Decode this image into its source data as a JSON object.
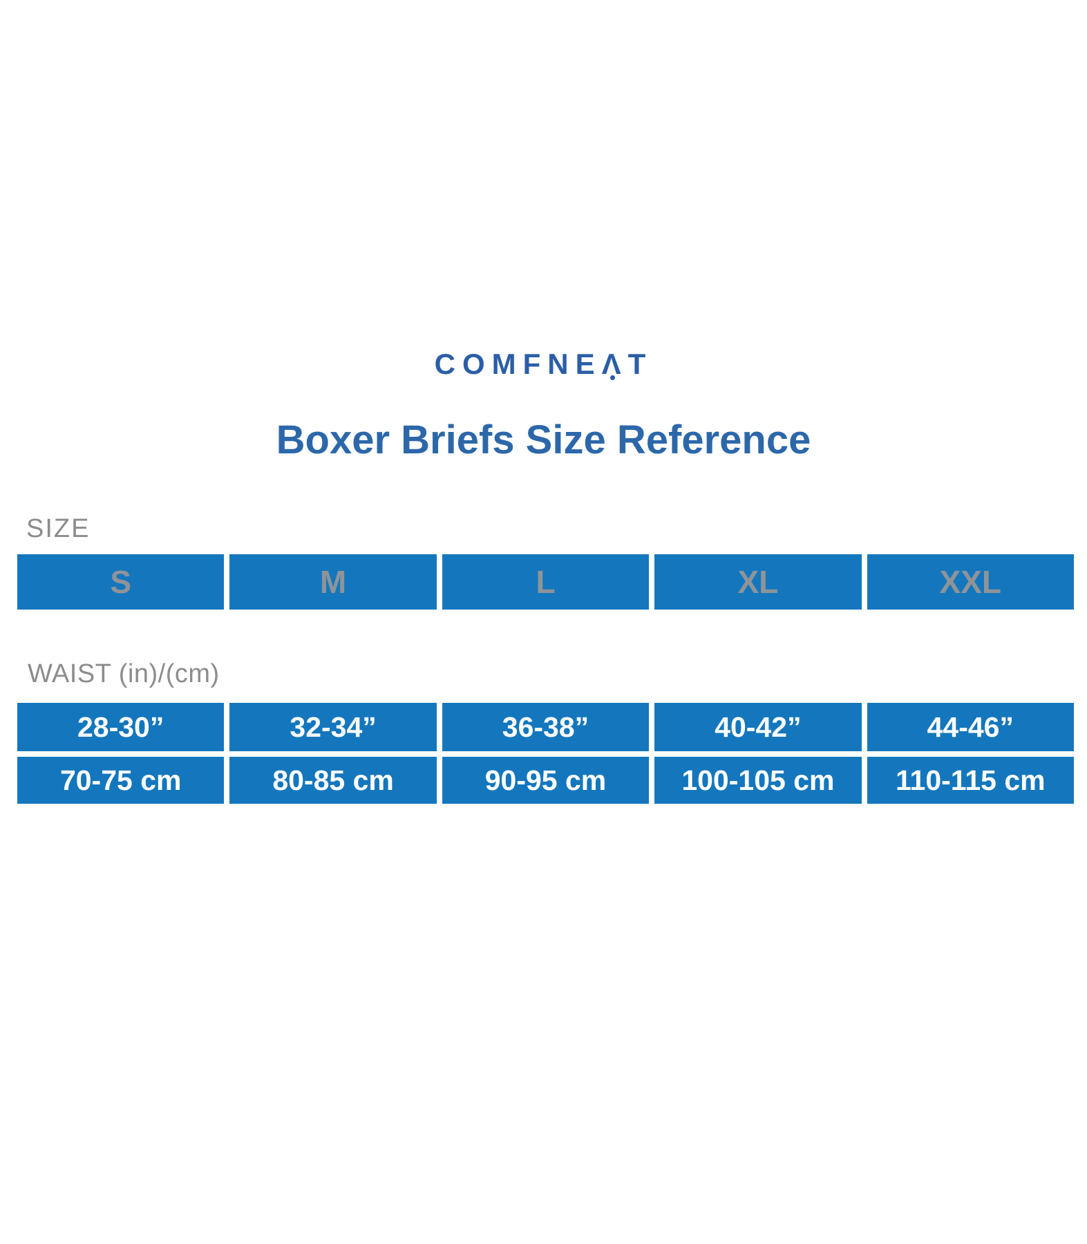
{
  "theme": {
    "page_background": "#ffffff",
    "cell_blue": "#1477BD",
    "title_blue": "#2C67A9",
    "logo_blue": "#2B5EA7",
    "label_gray": "#8C8C8C",
    "size_text_gray": "#8F9499",
    "cell_text_white": "#FFFFFF"
  },
  "header": {
    "brand_prefix": "COMFNE",
    "brand_a_glyph": "Λ",
    "brand_suffix": "T",
    "title": "Boxer Briefs Size Reference"
  },
  "size_section": {
    "label": "SIZE",
    "sizes": [
      "S",
      "M",
      "L",
      "XL",
      "XXL"
    ]
  },
  "waist_section": {
    "label": "WAIST (in)/(cm)",
    "inches": [
      "28-30”",
      "32-34”",
      "36-38”",
      "40-42”",
      "44-46”"
    ],
    "centimeters": [
      "70-75 cm",
      "80-85 cm",
      "90-95 cm",
      "100-105 cm",
      "110-115 cm"
    ]
  },
  "chart_data": {
    "type": "table",
    "title": "Boxer Briefs Size Reference",
    "brand": "COMFNEAT",
    "columns": [
      "S",
      "M",
      "L",
      "XL",
      "XXL"
    ],
    "rows": [
      {
        "label": "WAIST (in)",
        "values": [
          "28-30”",
          "32-34”",
          "36-38”",
          "40-42”",
          "44-46”"
        ]
      },
      {
        "label": "WAIST (cm)",
        "values": [
          "70-75 cm",
          "80-85 cm",
          "90-95 cm",
          "100-105 cm",
          "110-115 cm"
        ]
      }
    ]
  }
}
